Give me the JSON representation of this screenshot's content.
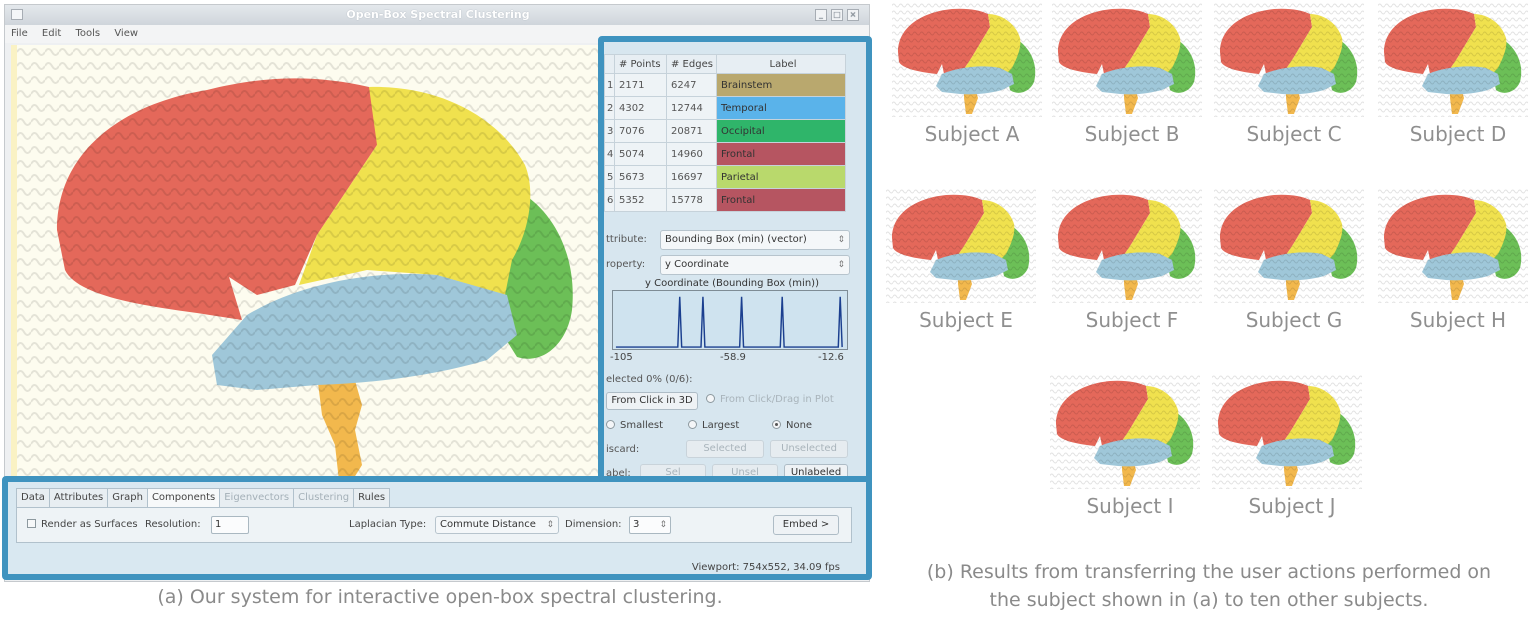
{
  "window": {
    "title": "Open-Box Spectral Clustering",
    "menu": [
      "File",
      "Edit",
      "Tools",
      "View"
    ]
  },
  "components_table": {
    "headers": [
      "# Points",
      "# Edges",
      "Label"
    ],
    "rows": [
      {
        "idx": "1",
        "points": "2171",
        "edges": "6247",
        "label": "Brainstem",
        "color": "#b9a86e"
      },
      {
        "idx": "2",
        "points": "4302",
        "edges": "12744",
        "label": "Temporal",
        "color": "#5ab3ea"
      },
      {
        "idx": "3",
        "points": "7076",
        "edges": "20871",
        "label": "Occipital",
        "color": "#2fb56a"
      },
      {
        "idx": "4",
        "points": "5074",
        "edges": "14960",
        "label": "Frontal",
        "color": "#b65561"
      },
      {
        "idx": "5",
        "points": "5673",
        "edges": "16697",
        "label": "Parietal",
        "color": "#b9d96c"
      },
      {
        "idx": "6",
        "points": "5352",
        "edges": "15778",
        "label": "Frontal",
        "color": "#b65561"
      }
    ]
  },
  "attribute": {
    "label": "ttribute:",
    "value": "Bounding Box (min) (vector)"
  },
  "property": {
    "label": "roperty:",
    "value": "y Coordinate"
  },
  "plot": {
    "title": "y Coordinate (Bounding Box (min))",
    "ticks": [
      "-105",
      "-58.9",
      "-12.6"
    ]
  },
  "selection": {
    "selected_text": "elected 0% (0/6):",
    "from_click_3d": "From Click in 3D",
    "from_click_drag": "From Click/Drag in Plot",
    "radios": [
      {
        "label": "Smallest",
        "on": false
      },
      {
        "label": "Largest",
        "on": false
      },
      {
        "label": "None",
        "on": true
      }
    ],
    "discard_label": "iscard:",
    "discard_selected": "Selected",
    "discard_unselected": "Unselected",
    "label_label": "abel:",
    "label_sel": "Sel",
    "label_unsel": "Unsel",
    "label_unlabeled": "Unlabeled"
  },
  "bottom": {
    "tabs": [
      {
        "label": "Data",
        "state": "normal"
      },
      {
        "label": "Attributes",
        "state": "normal"
      },
      {
        "label": "Graph",
        "state": "normal"
      },
      {
        "label": "Components",
        "state": "active"
      },
      {
        "label": "Eigenvectors",
        "state": "disabled"
      },
      {
        "label": "Clustering",
        "state": "disabled"
      },
      {
        "label": "Rules",
        "state": "normal"
      }
    ],
    "render_as_surfaces": "Render as Surfaces",
    "resolution_label": "Resolution:",
    "resolution_value": "1",
    "laplacian_label": "Laplacian Type:",
    "laplacian_value": "Commute Distance",
    "dimension_label": "Dimension:",
    "dimension_value": "3",
    "embed_button": "Embed >",
    "viewport_status": "Viewport: 754x552, 34.09 fps"
  },
  "caption_a": "(a) Our system for interactive open-box spectral clustering.",
  "caption_b_line1": "(b) Results from transferring the user actions performed on",
  "caption_b_line2": "the subject shown in (a) to ten other subjects.",
  "subjects": [
    "Subject A",
    "Subject B",
    "Subject C",
    "Subject D",
    "Subject E",
    "Subject F",
    "Subject G",
    "Subject H",
    "Subject I",
    "Subject J"
  ],
  "region_colors": {
    "frontal": "#e4685a",
    "parietal": "#f0e14e",
    "temporal": "#9fc7d9",
    "occipital": "#6cbf57",
    "brainstem": "#f2b84d"
  }
}
